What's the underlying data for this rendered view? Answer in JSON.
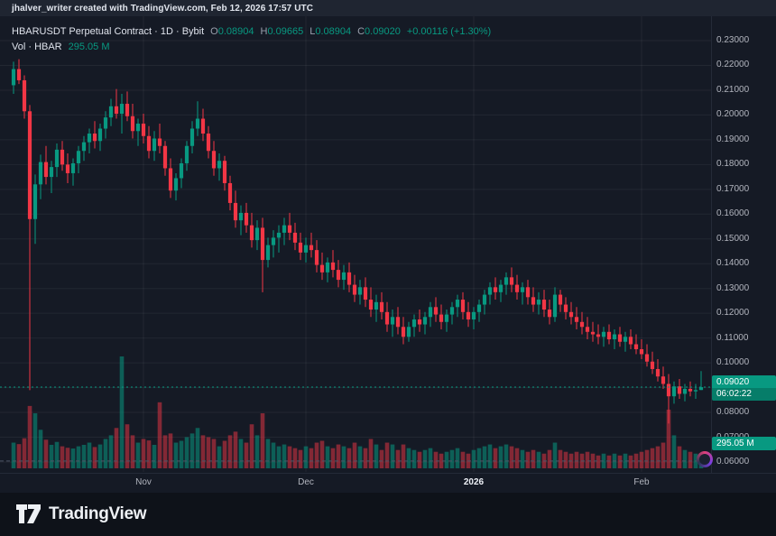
{
  "topbar": {
    "attribution": "jhalver_writer created with TradingView.com, Feb 12, 2026 17:57 UTC"
  },
  "legend": {
    "title": "HBARUSDT Perpetual Contract · 1D · Bybit",
    "o_label": "O",
    "o": "0.08904",
    "h_label": "H",
    "h": "0.09665",
    "l_label": "L",
    "l": "0.08904",
    "c_label": "C",
    "c": "0.09020",
    "change": "+0.00116 (+1.30%)",
    "vol_label": "Vol · HBAR",
    "vol_value": "295.05 M"
  },
  "price_axis": {
    "labels": [
      "0.23000",
      "0.22000",
      "0.21000",
      "0.20000",
      "0.19000",
      "0.18000",
      "0.17000",
      "0.16000",
      "0.15000",
      "0.14000",
      "0.13000",
      "0.12000",
      "0.11000",
      "0.10000",
      "0.09000",
      "0.08000",
      "0.07000",
      "0.06000"
    ],
    "current_price_label": "0.09020",
    "countdown": "06:02:22",
    "volume_label": "295.05 M"
  },
  "footer": {
    "brand": "TradingView"
  },
  "colors": {
    "up": "#089981",
    "down": "#f23645",
    "up_volume": "rgba(8,153,129,0.55)",
    "down_volume": "rgba(242,54,69,0.5)",
    "grid": "rgba(255,255,255,0.06)",
    "dashed_line": "#4c5566"
  },
  "chart_data": {
    "type": "candlestick+volume",
    "title": "HBARUSDT Perpetual Contract",
    "exchange": "Bybit",
    "interval": "1D",
    "last": {
      "open": 0.08904,
      "high": 0.09665,
      "low": 0.08904,
      "close": 0.0902,
      "change": "+0.00116",
      "change_pct": "+1.30%",
      "volume_m": 295.05
    },
    "y_range": [
      0.06,
      0.23
    ],
    "y_ticks": [
      0.23,
      0.22,
      0.21,
      0.2,
      0.19,
      0.18,
      0.17,
      0.16,
      0.15,
      0.14,
      0.13,
      0.12,
      0.11,
      0.1,
      0.09,
      0.08,
      0.07,
      0.06
    ],
    "x_ticks": [
      {
        "label": "Nov",
        "index": 24
      },
      {
        "label": "Dec",
        "index": 54
      },
      {
        "label": "2026",
        "index": 85,
        "emphasis": true
      },
      {
        "label": "Feb",
        "index": 116
      }
    ],
    "support_line_price": 0.0604,
    "volume_unit": "M",
    "candles_format": [
      "open",
      "high",
      "low",
      "close",
      "volume_m"
    ],
    "candles": [
      [
        0.212,
        0.2215,
        0.2085,
        0.2185,
        700
      ],
      [
        0.2185,
        0.2225,
        0.2125,
        0.214,
        660
      ],
      [
        0.214,
        0.216,
        0.1985,
        0.2015,
        820
      ],
      [
        0.2015,
        0.204,
        0.089,
        0.158,
        1700
      ],
      [
        0.158,
        0.176,
        0.148,
        0.172,
        1500
      ],
      [
        0.172,
        0.184,
        0.166,
        0.181,
        1050
      ],
      [
        0.181,
        0.1875,
        0.172,
        0.175,
        780
      ],
      [
        0.175,
        0.1815,
        0.1685,
        0.179,
        640
      ],
      [
        0.179,
        0.1885,
        0.175,
        0.186,
        720
      ],
      [
        0.186,
        0.1895,
        0.1775,
        0.18,
        600
      ],
      [
        0.18,
        0.1845,
        0.1725,
        0.1765,
        560
      ],
      [
        0.1765,
        0.1825,
        0.1715,
        0.1805,
        540
      ],
      [
        0.1805,
        0.1875,
        0.1765,
        0.1855,
        600
      ],
      [
        0.1855,
        0.1915,
        0.1815,
        0.189,
        640
      ],
      [
        0.189,
        0.1945,
        0.1845,
        0.1925,
        700
      ],
      [
        0.1925,
        0.1975,
        0.1865,
        0.1895,
        580
      ],
      [
        0.1895,
        0.1965,
        0.1855,
        0.1945,
        650
      ],
      [
        0.1945,
        0.2015,
        0.1905,
        0.199,
        800
      ],
      [
        0.199,
        0.2065,
        0.1955,
        0.2035,
        900
      ],
      [
        0.2035,
        0.2105,
        0.1985,
        0.2005,
        1100
      ],
      [
        0.2005,
        0.2085,
        0.1925,
        0.2045,
        3050
      ],
      [
        0.2045,
        0.2095,
        0.1975,
        0.1995,
        1200
      ],
      [
        0.1995,
        0.2045,
        0.1905,
        0.1935,
        900
      ],
      [
        0.1935,
        0.1985,
        0.1875,
        0.1965,
        700
      ],
      [
        0.1965,
        0.2005,
        0.1885,
        0.1915,
        800
      ],
      [
        0.1915,
        0.1955,
        0.1825,
        0.1855,
        760
      ],
      [
        0.1855,
        0.1935,
        0.1815,
        0.1905,
        640
      ],
      [
        0.1905,
        0.1965,
        0.1845,
        0.1875,
        1800
      ],
      [
        0.1875,
        0.1895,
        0.1755,
        0.1785,
        900
      ],
      [
        0.1785,
        0.1825,
        0.1665,
        0.1695,
        950
      ],
      [
        0.1695,
        0.1765,
        0.1655,
        0.1745,
        700
      ],
      [
        0.1745,
        0.1825,
        0.1705,
        0.1805,
        750
      ],
      [
        0.1805,
        0.1895,
        0.1775,
        0.1875,
        850
      ],
      [
        0.1875,
        0.1975,
        0.1845,
        0.1945,
        950
      ],
      [
        0.1945,
        0.2055,
        0.1915,
        0.1985,
        1100
      ],
      [
        0.1985,
        0.2025,
        0.1895,
        0.1925,
        900
      ],
      [
        0.1925,
        0.1955,
        0.1825,
        0.1855,
        850
      ],
      [
        0.1855,
        0.1895,
        0.1755,
        0.1785,
        800
      ],
      [
        0.1785,
        0.1845,
        0.1735,
        0.1815,
        600
      ],
      [
        0.1815,
        0.1835,
        0.1695,
        0.1725,
        750
      ],
      [
        0.1725,
        0.1755,
        0.1615,
        0.1645,
        900
      ],
      [
        0.1645,
        0.1695,
        0.1545,
        0.1575,
        1000
      ],
      [
        0.1575,
        0.1635,
        0.1515,
        0.1605,
        800
      ],
      [
        0.1605,
        0.1645,
        0.1525,
        0.1555,
        700
      ],
      [
        0.1555,
        0.1605,
        0.1465,
        0.1495,
        1200
      ],
      [
        0.1495,
        0.1575,
        0.1455,
        0.1545,
        900
      ],
      [
        0.1545,
        0.1585,
        0.1285,
        0.1415,
        1500
      ],
      [
        0.1415,
        0.1505,
        0.1385,
        0.1475,
        800
      ],
      [
        0.1475,
        0.1535,
        0.1425,
        0.1505,
        700
      ],
      [
        0.1505,
        0.1555,
        0.1445,
        0.1525,
        600
      ],
      [
        0.1525,
        0.1585,
        0.1475,
        0.1555,
        650
      ],
      [
        0.1555,
        0.1605,
        0.1495,
        0.1525,
        600
      ],
      [
        0.1525,
        0.1565,
        0.1455,
        0.1485,
        550
      ],
      [
        0.1485,
        0.1525,
        0.1415,
        0.1445,
        500
      ],
      [
        0.1445,
        0.1505,
        0.1405,
        0.1475,
        600
      ],
      [
        0.1475,
        0.1525,
        0.1425,
        0.1455,
        550
      ],
      [
        0.1455,
        0.1495,
        0.1365,
        0.1395,
        700
      ],
      [
        0.1395,
        0.1445,
        0.1335,
        0.1365,
        750
      ],
      [
        0.1365,
        0.1425,
        0.1325,
        0.1405,
        600
      ],
      [
        0.1405,
        0.1455,
        0.1345,
        0.1375,
        550
      ],
      [
        0.1375,
        0.1415,
        0.1305,
        0.1335,
        650
      ],
      [
        0.1335,
        0.1395,
        0.1295,
        0.1365,
        600
      ],
      [
        0.1365,
        0.1405,
        0.1285,
        0.1315,
        550
      ],
      [
        0.1315,
        0.1355,
        0.1245,
        0.1275,
        700
      ],
      [
        0.1275,
        0.1335,
        0.1235,
        0.1305,
        600
      ],
      [
        0.1305,
        0.1345,
        0.1225,
        0.1255,
        550
      ],
      [
        0.1255,
        0.1305,
        0.1185,
        0.1215,
        800
      ],
      [
        0.1215,
        0.1275,
        0.1165,
        0.1245,
        650
      ],
      [
        0.1245,
        0.1285,
        0.1175,
        0.1205,
        500
      ],
      [
        0.1205,
        0.1245,
        0.1125,
        0.1155,
        700
      ],
      [
        0.1155,
        0.1215,
        0.1105,
        0.1185,
        650
      ],
      [
        0.1185,
        0.1225,
        0.1115,
        0.1145,
        500
      ],
      [
        0.1145,
        0.1185,
        0.1075,
        0.1105,
        650
      ],
      [
        0.1105,
        0.1165,
        0.1085,
        0.1145,
        550
      ],
      [
        0.1145,
        0.1195,
        0.1105,
        0.1175,
        500
      ],
      [
        0.1175,
        0.1215,
        0.1125,
        0.1155,
        450
      ],
      [
        0.1155,
        0.1205,
        0.1115,
        0.1185,
        500
      ],
      [
        0.1185,
        0.1245,
        0.1145,
        0.1225,
        550
      ],
      [
        0.1225,
        0.1265,
        0.1165,
        0.1195,
        450
      ],
      [
        0.1195,
        0.1235,
        0.1135,
        0.1165,
        400
      ],
      [
        0.1165,
        0.1215,
        0.1125,
        0.1195,
        450
      ],
      [
        0.1195,
        0.1245,
        0.1155,
        0.1225,
        500
      ],
      [
        0.1225,
        0.1275,
        0.1185,
        0.1255,
        550
      ],
      [
        0.1255,
        0.1285,
        0.1175,
        0.1205,
        450
      ],
      [
        0.1205,
        0.1245,
        0.1145,
        0.1175,
        400
      ],
      [
        0.1175,
        0.1225,
        0.1135,
        0.1205,
        500
      ],
      [
        0.1205,
        0.1255,
        0.1165,
        0.1235,
        550
      ],
      [
        0.1235,
        0.1295,
        0.1195,
        0.1275,
        600
      ],
      [
        0.1275,
        0.1325,
        0.1235,
        0.1305,
        650
      ],
      [
        0.1305,
        0.1345,
        0.1255,
        0.1285,
        550
      ],
      [
        0.1285,
        0.1335,
        0.1245,
        0.1315,
        600
      ],
      [
        0.1315,
        0.1365,
        0.1275,
        0.1345,
        650
      ],
      [
        0.1345,
        0.1385,
        0.1285,
        0.1315,
        600
      ],
      [
        0.1315,
        0.1355,
        0.1255,
        0.1285,
        550
      ],
      [
        0.1285,
        0.1325,
        0.1235,
        0.1305,
        500
      ],
      [
        0.1305,
        0.1335,
        0.1235,
        0.1265,
        450
      ],
      [
        0.1265,
        0.1305,
        0.1205,
        0.1235,
        500
      ],
      [
        0.1235,
        0.1285,
        0.1195,
        0.1255,
        450
      ],
      [
        0.1255,
        0.1295,
        0.1185,
        0.1215,
        400
      ],
      [
        0.1215,
        0.1255,
        0.1155,
        0.1185,
        500
      ],
      [
        0.1185,
        0.1305,
        0.1165,
        0.1275,
        700
      ],
      [
        0.1275,
        0.1295,
        0.1205,
        0.1235,
        500
      ],
      [
        0.1235,
        0.1265,
        0.1175,
        0.1205,
        450
      ],
      [
        0.1205,
        0.1245,
        0.1155,
        0.1185,
        400
      ],
      [
        0.1185,
        0.1225,
        0.1135,
        0.1165,
        450
      ],
      [
        0.1165,
        0.1205,
        0.1115,
        0.1145,
        400
      ],
      [
        0.1145,
        0.1185,
        0.1095,
        0.1125,
        450
      ],
      [
        0.1125,
        0.1165,
        0.1085,
        0.1115,
        400
      ],
      [
        0.1115,
        0.1155,
        0.1075,
        0.1105,
        350
      ],
      [
        0.1105,
        0.1145,
        0.1065,
        0.1125,
        400
      ],
      [
        0.1125,
        0.1155,
        0.1075,
        0.1095,
        350
      ],
      [
        0.1095,
        0.1135,
        0.1055,
        0.1115,
        400
      ],
      [
        0.1115,
        0.1145,
        0.1065,
        0.1085,
        350
      ],
      [
        0.1085,
        0.1125,
        0.1045,
        0.1105,
        400
      ],
      [
        0.1105,
        0.1135,
        0.1055,
        0.1075,
        350
      ],
      [
        0.1075,
        0.1115,
        0.1035,
        0.1055,
        400
      ],
      [
        0.1055,
        0.1095,
        0.1015,
        0.1035,
        450
      ],
      [
        0.1035,
        0.1075,
        0.0985,
        0.1005,
        500
      ],
      [
        0.1005,
        0.1045,
        0.0955,
        0.0975,
        550
      ],
      [
        0.0975,
        0.1015,
        0.0925,
        0.0945,
        600
      ],
      [
        0.0945,
        0.0985,
        0.0895,
        0.0915,
        700
      ],
      [
        0.0915,
        0.0955,
        0.0755,
        0.0865,
        1600
      ],
      [
        0.0865,
        0.0925,
        0.0835,
        0.0905,
        900
      ],
      [
        0.0905,
        0.0935,
        0.0855,
        0.0875,
        600
      ],
      [
        0.0875,
        0.0915,
        0.0845,
        0.0895,
        500
      ],
      [
        0.0895,
        0.0925,
        0.0865,
        0.0885,
        450
      ],
      [
        0.0885,
        0.0915,
        0.0855,
        0.089,
        400
      ],
      [
        0.08904,
        0.09665,
        0.08904,
        0.0902,
        295
      ]
    ]
  }
}
